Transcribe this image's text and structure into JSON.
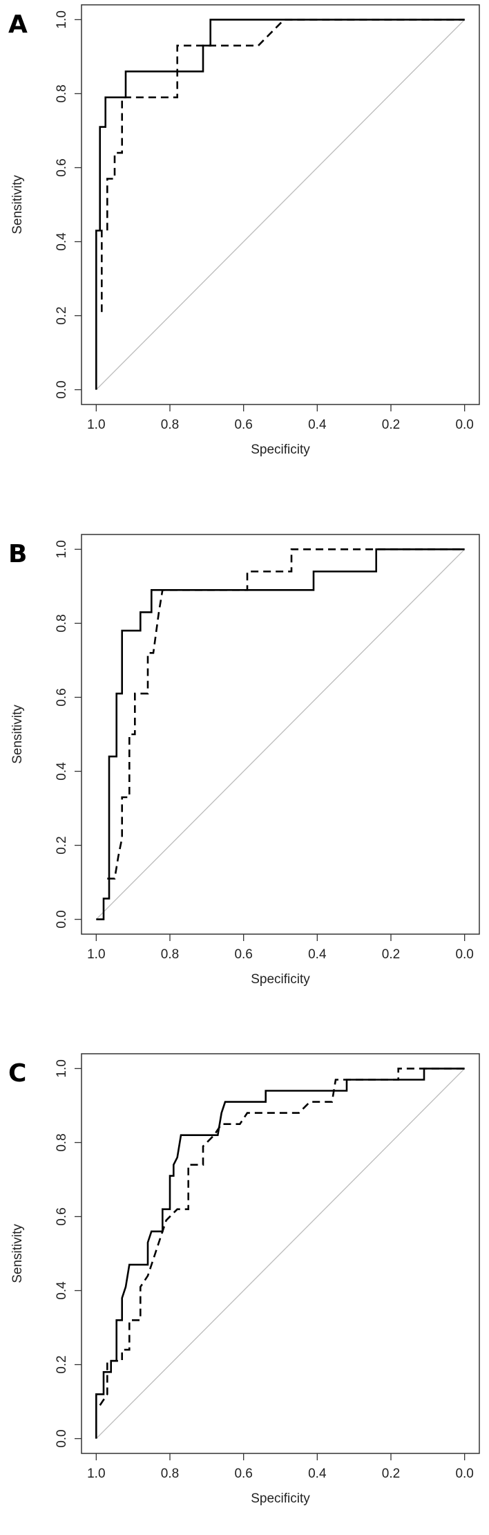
{
  "chart_data": [
    {
      "type": "line",
      "panel_label": "A",
      "xlabel": "Specificity",
      "ylabel": "Sensitivity",
      "xlim": [
        1.04,
        -0.04
      ],
      "ylim": [
        -0.04,
        1.04
      ],
      "xticks": [
        {
          "value": 1,
          "label": "1.0"
        },
        0.8,
        0.6,
        0.4,
        0.2,
        {
          "value": 0,
          "label": "0.0"
        }
      ],
      "yticks": [
        {
          "value": 0,
          "label": "0.0"
        },
        0.2,
        0.4,
        0.6,
        0.8,
        {
          "value": 1,
          "label": "1.0"
        }
      ],
      "series": [
        {
          "color": "#000000",
          "style": "solid",
          "x": [
            1,
            1,
            0.99,
            0.99,
            0.975,
            0.975,
            0.92,
            0.92,
            0.71,
            0.71,
            0.69,
            0.69,
            0
          ],
          "values": [
            0,
            0.43,
            0.43,
            0.71,
            0.71,
            0.79,
            0.79,
            0.86,
            0.86,
            0.93,
            0.93,
            1,
            1
          ]
        },
        {
          "color": "#000000",
          "style": "dashed",
          "x": [
            0.985,
            0.985,
            0.97,
            0.97,
            0.95,
            0.95,
            0.93,
            0.93,
            0.78,
            0.78,
            0.56,
            0.49,
            0
          ],
          "values": [
            0.21,
            0.43,
            0.43,
            0.57,
            0.57,
            0.64,
            0.64,
            0.79,
            0.79,
            0.93,
            0.93,
            1,
            1
          ]
        }
      ]
    },
    {
      "type": "line",
      "panel_label": "B",
      "xlabel": "Specificity",
      "ylabel": "Sensitivity",
      "xlim": [
        1.04,
        -0.04
      ],
      "ylim": [
        -0.04,
        1.04
      ],
      "xticks": [
        {
          "value": 1,
          "label": "1.0"
        },
        0.8,
        0.6,
        0.4,
        0.2,
        {
          "value": 0,
          "label": "0.0"
        }
      ],
      "yticks": [
        {
          "value": 0,
          "label": "0.0"
        },
        0.2,
        0.4,
        0.6,
        0.8,
        {
          "value": 1,
          "label": "1.0"
        }
      ],
      "series": [
        {
          "color": "#000000",
          "style": "solid",
          "x": [
            1,
            0.98,
            0.98,
            0.965,
            0.965,
            0.945,
            0.945,
            0.93,
            0.93,
            0.88,
            0.88,
            0.85,
            0.85,
            0.41,
            0.41,
            0.24,
            0.24,
            0
          ],
          "values": [
            0,
            0,
            0.056,
            0.056,
            0.44,
            0.44,
            0.61,
            0.61,
            0.78,
            0.78,
            0.83,
            0.83,
            0.89,
            0.89,
            0.94,
            0.94,
            1,
            1
          ]
        },
        {
          "color": "#000000",
          "style": "dashed",
          "x": [
            0.97,
            0.95,
            0.94,
            0.93,
            0.93,
            0.91,
            0.91,
            0.895,
            0.895,
            0.86,
            0.86,
            0.845,
            0.83,
            0.82,
            0.59,
            0.59,
            0.47,
            0.47,
            0
          ],
          "values": [
            0.11,
            0.11,
            0.17,
            0.22,
            0.33,
            0.33,
            0.5,
            0.5,
            0.61,
            0.61,
            0.72,
            0.72,
            0.83,
            0.89,
            0.89,
            0.94,
            0.94,
            1,
            1
          ]
        }
      ]
    },
    {
      "type": "line",
      "panel_label": "C",
      "xlabel": "Specificity",
      "ylabel": "Sensitivity",
      "xlim": [
        1.04,
        -0.04
      ],
      "ylim": [
        -0.04,
        1.04
      ],
      "xticks": [
        {
          "value": 1,
          "label": "1.0"
        },
        0.8,
        0.6,
        0.4,
        0.2,
        {
          "value": 0,
          "label": "0.0"
        }
      ],
      "yticks": [
        {
          "value": 0,
          "label": "0.0"
        },
        0.2,
        0.4,
        0.6,
        0.8,
        {
          "value": 1,
          "label": "1.0"
        }
      ],
      "series": [
        {
          "color": "#000000",
          "style": "solid",
          "x": [
            1,
            1,
            0.98,
            0.98,
            0.96,
            0.96,
            0.945,
            0.945,
            0.93,
            0.93,
            0.92,
            0.91,
            0.86,
            0.86,
            0.85,
            0.82,
            0.82,
            0.8,
            0.8,
            0.79,
            0.79,
            0.78,
            0.77,
            0.67,
            0.66,
            0.65,
            0.54,
            0.54,
            0.32,
            0.32,
            0.11,
            0.11,
            0
          ],
          "values": [
            0,
            0.12,
            0.12,
            0.18,
            0.18,
            0.21,
            0.21,
            0.32,
            0.32,
            0.38,
            0.41,
            0.47,
            0.47,
            0.53,
            0.56,
            0.56,
            0.62,
            0.62,
            0.71,
            0.71,
            0.74,
            0.76,
            0.82,
            0.82,
            0.88,
            0.91,
            0.91,
            0.94,
            0.94,
            0.97,
            0.97,
            1,
            1
          ]
        },
        {
          "color": "#000000",
          "style": "dashed",
          "x": [
            0.99,
            0.97,
            0.97,
            0.93,
            0.93,
            0.91,
            0.91,
            0.88,
            0.88,
            0.86,
            0.84,
            0.83,
            0.81,
            0.78,
            0.75,
            0.75,
            0.71,
            0.71,
            0.68,
            0.66,
            0.61,
            0.59,
            0.45,
            0.42,
            0.36,
            0.35,
            0.18,
            0.18,
            0
          ],
          "values": [
            0.09,
            0.12,
            0.21,
            0.21,
            0.24,
            0.24,
            0.32,
            0.32,
            0.41,
            0.44,
            0.5,
            0.53,
            0.59,
            0.62,
            0.62,
            0.74,
            0.74,
            0.79,
            0.82,
            0.85,
            0.85,
            0.88,
            0.88,
            0.91,
            0.91,
            0.97,
            0.97,
            1,
            1
          ]
        }
      ]
    }
  ]
}
